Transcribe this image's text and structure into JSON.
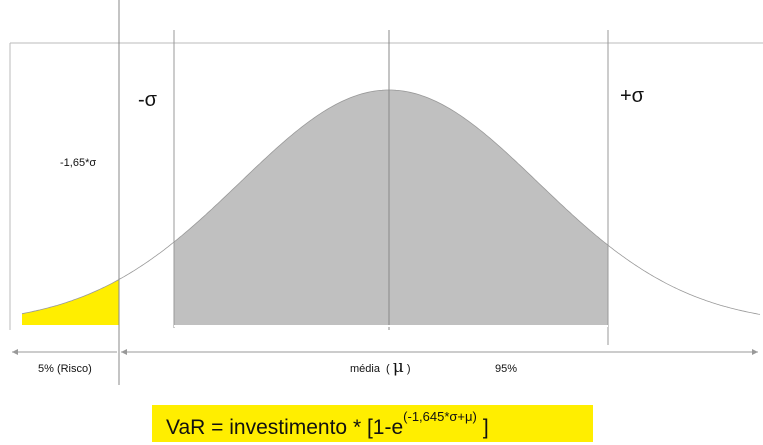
{
  "labels": {
    "minus_sigma": "-σ",
    "plus_sigma": "+σ",
    "var_level": "-1,65*σ",
    "risk": "5% (Risco)",
    "mean": "média",
    "mu": "μ",
    "confidence": "95%"
  },
  "formula": {
    "main": "VaR = investimento * [1-e",
    "exponent": "(-1,645*σ+μ)",
    "close": "]"
  }
}
